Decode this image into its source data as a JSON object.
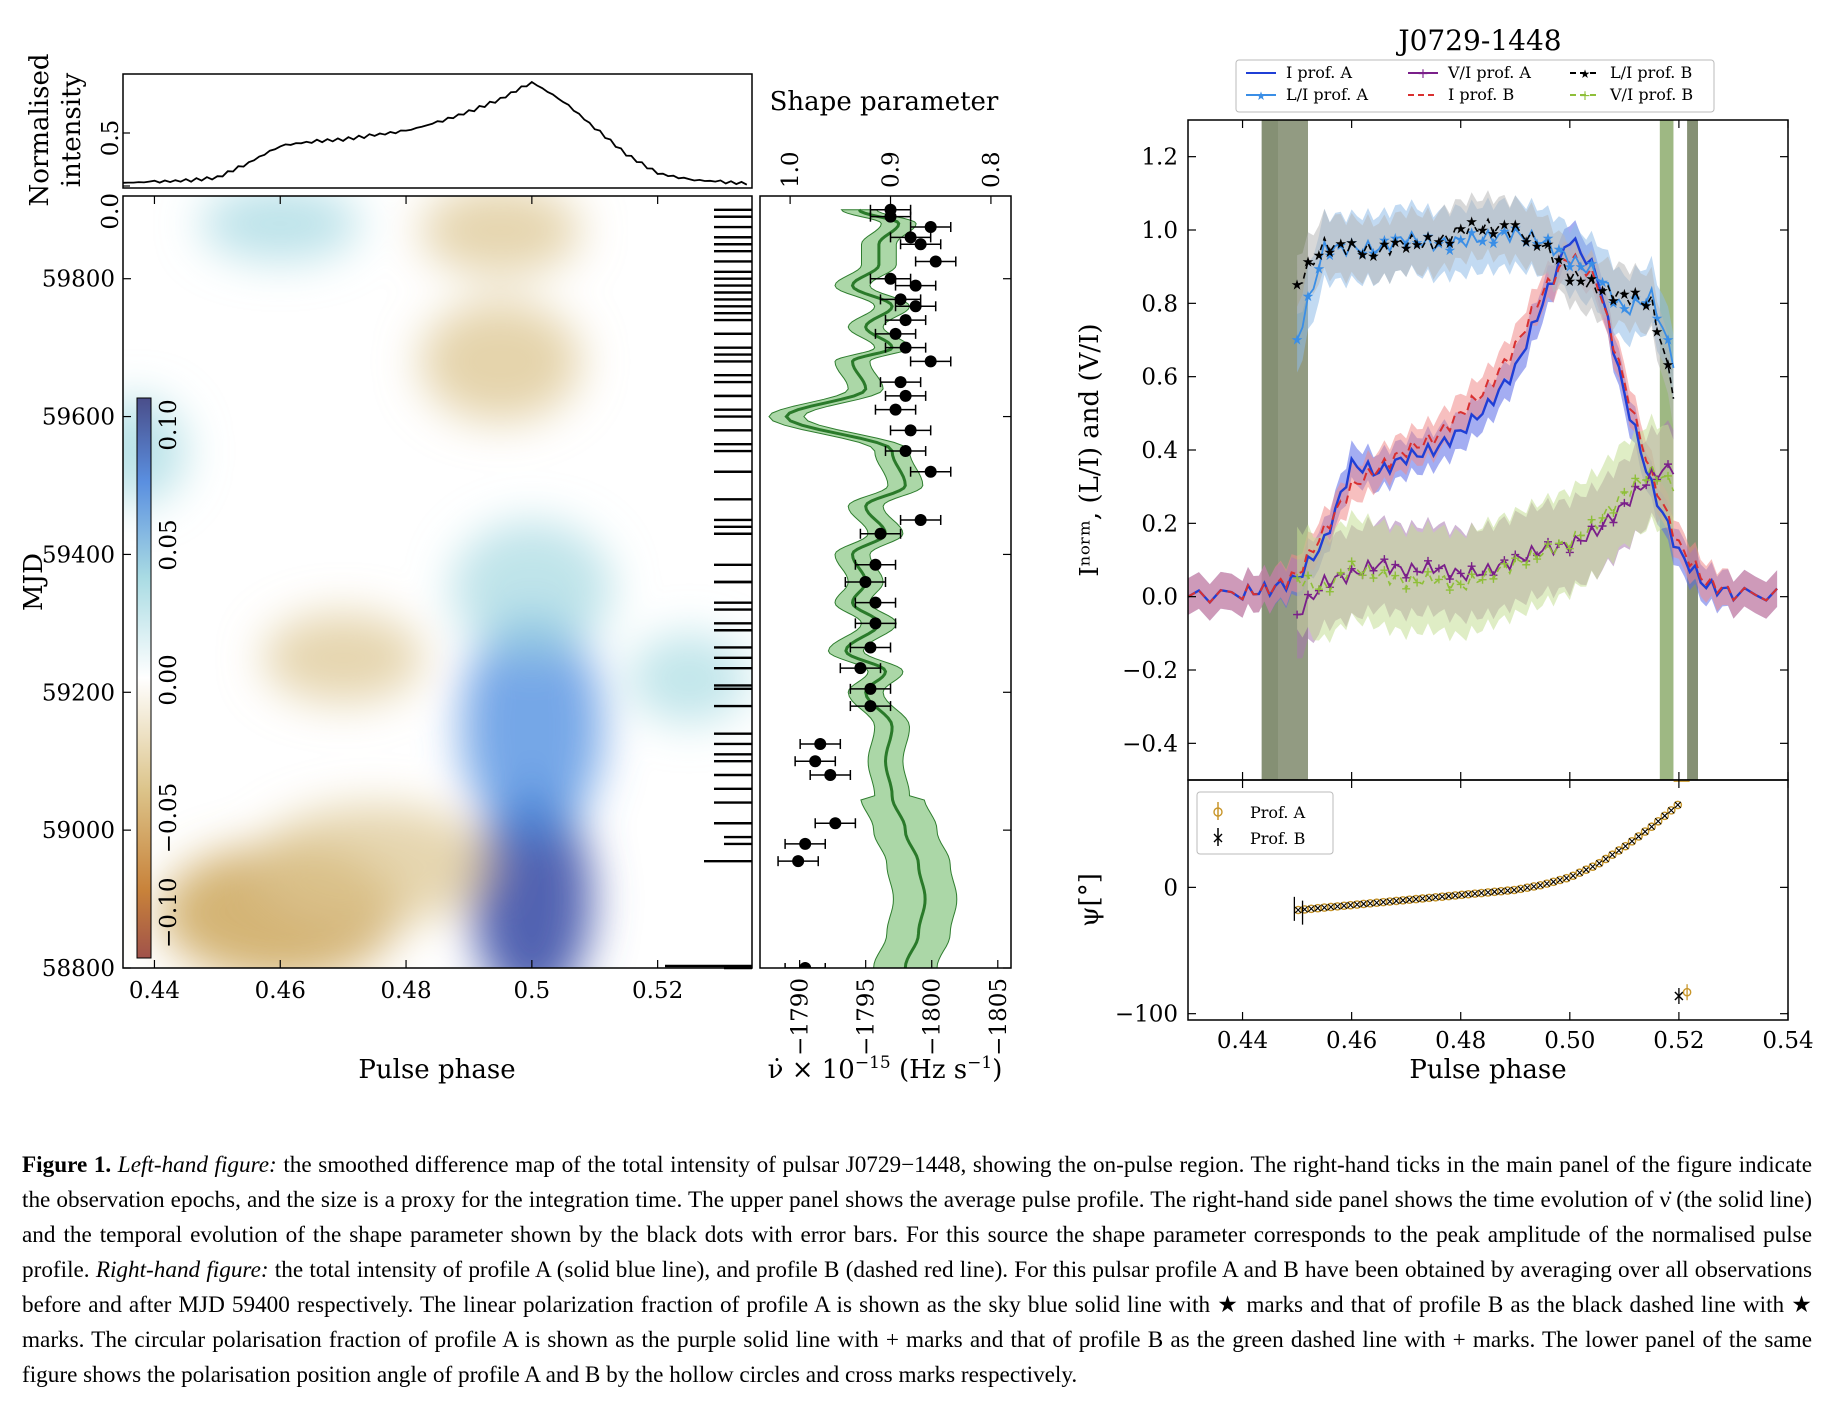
{
  "left_figure": {
    "top_panel": {
      "ylabel_line1": "Normalised",
      "ylabel_line2": "intensity",
      "yticks": [
        "0.0",
        "0.5"
      ]
    },
    "main_panel": {
      "ylabel": "MJD",
      "xlabel": "Pulse phase",
      "xticks": [
        "0.44",
        "0.46",
        "0.48",
        "0.5",
        "0.52"
      ],
      "yticks": [
        "58800",
        "59000",
        "59200",
        "59400",
        "59600",
        "59800"
      ],
      "colorbar_ticks": [
        "−0.10",
        "−0.05",
        "0.00",
        "0.05",
        "0.10"
      ]
    },
    "side_panel": {
      "title": "Shape parameter",
      "top_ticks": [
        "1.0",
        "0.9",
        "0.8"
      ],
      "bottom_ticks": [
        "−1790",
        "−1795",
        "−1800",
        "−1805"
      ],
      "xlabel_prefix": "ν̇ × 10",
      "xlabel_exp": "−15",
      "xlabel_suffix": " (Hz s",
      "xlabel_exp2": "−1",
      "xlabel_close": ")"
    }
  },
  "right_figure": {
    "title": "J0729-1448",
    "ylabel": "Iⁿᵒʳᵐ, (L/I) and (V/I)",
    "legend": [
      {
        "label": "I prof. A",
        "color": "#1f3fd6",
        "style": "solid"
      },
      {
        "label": "L/I prof. A",
        "color": "#3a8ee6",
        "style": "solid-star"
      },
      {
        "label": "V/I prof. A",
        "color": "#7a1f8a",
        "style": "solid-plus"
      },
      {
        "label": "I prof. B",
        "color": "#d93030",
        "style": "dashed"
      },
      {
        "label": "L/I prof. B",
        "color": "#000000",
        "style": "dashed-star"
      },
      {
        "label": "V/I prof. B",
        "color": "#8fbf3a",
        "style": "dashed-plus"
      }
    ],
    "yticks": [
      "−0.4",
      "−0.2",
      "0.0",
      "0.2",
      "0.4",
      "0.6",
      "0.8",
      "1.0",
      "1.2"
    ],
    "pa_panel": {
      "ylabel": "ψ[°]",
      "yticks": [
        "−100",
        "0"
      ],
      "legend": [
        {
          "label": "Prof. A",
          "color": "#c8962a"
        },
        {
          "label": "Prof. B",
          "color": "#000000"
        }
      ]
    },
    "xlabel": "Pulse phase",
    "xticks": [
      "0.44",
      "0.46",
      "0.48",
      "0.50",
      "0.52",
      "0.54"
    ]
  },
  "caption": {
    "label": "Figure 1.",
    "lhf": "Left-hand figure:",
    "text1": " the smoothed difference map of the total intensity of pulsar J0729−1448, showing the on-pulse region. The right-hand ticks in the main panel of the figure indicate the observation epochs, and the size is a proxy for the integration time. The upper panel shows the average pulse profile. The right-hand side panel shows the time evolution of ν̇ (the solid line) and the temporal evolution of the shape parameter shown by the black dots with error bars. For this source the shape parameter corresponds to the peak amplitude of the normalised pulse profile. ",
    "rhf": "Right-hand figure:",
    "text2": " the total intensity of profile A (solid blue line), and profile B (dashed red line). For this pulsar profile A and B have been obtained by averaging over all observations before and after MJD 59400 respectively. The linear polarization fraction of profile A is shown as the sky blue solid line with ★ marks and that of profile B as the black dashed line with ★ marks. The circular polarisation fraction of profile A is shown as the purple solid line with + marks and that of profile B as the green dashed line with + marks. The lower panel of the same figure shows the polarisation position angle of profile A and B by the hollow circles and cross marks respectively."
  },
  "chart_data": [
    {
      "type": "line",
      "title": "",
      "xlabel": "Pulse phase",
      "ylabel": "Normalised intensity",
      "x": [
        0.435,
        0.44,
        0.445,
        0.45,
        0.455,
        0.46,
        0.465,
        0.47,
        0.475,
        0.48,
        0.485,
        0.49,
        0.495,
        0.5,
        0.505,
        0.51,
        0.515,
        0.52,
        0.525,
        0.53,
        0.535
      ],
      "y": [
        0.03,
        0.04,
        0.05,
        0.08,
        0.22,
        0.38,
        0.42,
        0.44,
        0.48,
        0.52,
        0.6,
        0.7,
        0.82,
        0.98,
        0.8,
        0.55,
        0.3,
        0.12,
        0.06,
        0.04,
        0.02
      ],
      "ylim": [
        0,
        1
      ]
    },
    {
      "type": "heatmap",
      "title": "",
      "xlabel": "Pulse phase",
      "ylabel": "MJD",
      "xlim": [
        0.435,
        0.535
      ],
      "ylim": [
        58800,
        59920
      ],
      "colorbar_range": [
        -0.12,
        0.12
      ],
      "blobs": [
        {
          "x": 0.5,
          "y": 58900,
          "value": 0.11,
          "sx": 0.006,
          "sy": 140
        },
        {
          "x": 0.5,
          "y": 59150,
          "value": 0.06,
          "sx": 0.007,
          "sy": 150
        },
        {
          "x": 0.5,
          "y": 59350,
          "value": 0.03,
          "sx": 0.008,
          "sy": 90
        },
        {
          "x": 0.46,
          "y": 58880,
          "value": -0.06,
          "sx": 0.012,
          "sy": 90
        },
        {
          "x": 0.475,
          "y": 58950,
          "value": -0.04,
          "sx": 0.012,
          "sy": 80
        },
        {
          "x": 0.47,
          "y": 59250,
          "value": -0.04,
          "sx": 0.008,
          "sy": 60
        },
        {
          "x": 0.495,
          "y": 59680,
          "value": -0.05,
          "sx": 0.008,
          "sy": 80
        },
        {
          "x": 0.495,
          "y": 59870,
          "value": -0.04,
          "sx": 0.008,
          "sy": 60
        },
        {
          "x": 0.46,
          "y": 59880,
          "value": 0.035,
          "sx": 0.008,
          "sy": 50
        },
        {
          "x": 0.437,
          "y": 59550,
          "value": 0.04,
          "sx": 0.005,
          "sy": 70
        },
        {
          "x": 0.525,
          "y": 59220,
          "value": 0.02,
          "sx": 0.006,
          "sy": 60
        }
      ]
    },
    {
      "type": "line",
      "title": "Shape parameter",
      "xlabel": "ν̇ × 10^−15 (Hz s^−1)",
      "ylabel": "MJD",
      "nudot_mjd": [
        58800,
        58850,
        58900,
        58950,
        59000,
        59050,
        59100,
        59150,
        59200,
        59230,
        59260,
        59300,
        59330,
        59360,
        59400,
        59430,
        59470,
        59500,
        59550,
        59600,
        59640,
        59680,
        59700,
        59730,
        59760,
        59790,
        59820,
        59850,
        59880,
        59900
      ],
      "nudot": [
        -1798,
        -1799,
        -1799.5,
        -1799,
        -1798,
        -1797,
        -1796.5,
        -1797,
        -1795,
        -1796.5,
        -1793.5,
        -1796,
        -1794,
        -1795,
        -1794,
        -1796.5,
        -1795,
        -1798,
        -1797,
        -1789,
        -1795,
        -1794,
        -1797,
        -1795,
        -1797,
        -1794,
        -1796,
        -1796,
        -1797.5,
        -1794.5
      ],
      "nudot_err": 1.2,
      "shape_mjd": [
        58800,
        58955,
        58980,
        59010,
        59080,
        59100,
        59125,
        59180,
        59205,
        59235,
        59265,
        59300,
        59330,
        59360,
        59385,
        59430,
        59450,
        59520,
        59550,
        59580,
        59610,
        59630,
        59650,
        59680,
        59700,
        59720,
        59740,
        59760,
        59770,
        59790,
        59800,
        59825,
        59850,
        59860,
        59875,
        59890,
        59900
      ],
      "shape": [
        0.985,
        0.992,
        0.985,
        0.955,
        0.96,
        0.975,
        0.97,
        0.92,
        0.92,
        0.93,
        0.92,
        0.915,
        0.915,
        0.925,
        0.915,
        0.91,
        0.87,
        0.86,
        0.885,
        0.88,
        0.895,
        0.885,
        0.89,
        0.86,
        0.885,
        0.895,
        0.885,
        0.875,
        0.89,
        0.875,
        0.9,
        0.855,
        0.87,
        0.88,
        0.86,
        0.9,
        0.9
      ],
      "shape_err": 0.02,
      "shape_xlim": [
        1.03,
        0.78
      ],
      "nudot_xlim": [
        -1787,
        -1806
      ]
    },
    {
      "type": "line",
      "title": "J0729-1448",
      "xlabel": "Pulse phase",
      "ylabel": "I norm, (L/I) and (V/I)",
      "xlim": [
        0.43,
        0.54
      ],
      "ylim": [
        -0.5,
        1.3
      ],
      "x": [
        0.43,
        0.44,
        0.445,
        0.45,
        0.455,
        0.46,
        0.465,
        0.47,
        0.475,
        0.48,
        0.485,
        0.49,
        0.495,
        0.5,
        0.505,
        0.51,
        0.515,
        0.52,
        0.525,
        0.53,
        0.54
      ],
      "series": [
        {
          "name": "I prof. A",
          "values": [
            0.0,
            0.01,
            0.02,
            0.05,
            0.15,
            0.36,
            0.34,
            0.38,
            0.4,
            0.45,
            0.52,
            0.62,
            0.8,
            0.98,
            0.88,
            0.55,
            0.3,
            0.12,
            0.03,
            0.01,
            0.0
          ]
        },
        {
          "name": "I prof. B",
          "values": [
            0.0,
            0.01,
            0.02,
            0.06,
            0.18,
            0.3,
            0.35,
            0.4,
            0.43,
            0.5,
            0.57,
            0.68,
            0.83,
            0.93,
            0.86,
            0.58,
            0.33,
            0.14,
            0.04,
            0.01,
            0.0
          ]
        },
        {
          "name": "L/I prof. A",
          "values": [
            null,
            null,
            null,
            0.7,
            0.95,
            0.95,
            0.95,
            0.98,
            0.96,
            0.97,
            0.98,
            0.99,
            0.97,
            0.92,
            0.88,
            0.78,
            0.82,
            0.6,
            null,
            null,
            null
          ]
        },
        {
          "name": "L/I prof. B",
          "values": [
            null,
            null,
            null,
            0.85,
            0.96,
            0.95,
            0.94,
            0.97,
            0.96,
            1.0,
            1.01,
            1.0,
            0.96,
            0.88,
            0.84,
            0.82,
            0.8,
            0.5,
            null,
            null,
            null
          ]
        },
        {
          "name": "V/I prof. A",
          "values": [
            null,
            null,
            null,
            -0.05,
            0.04,
            0.06,
            0.09,
            0.07,
            0.08,
            0.06,
            0.07,
            0.1,
            0.13,
            0.14,
            0.18,
            0.25,
            0.33,
            0.36,
            null,
            null,
            null
          ]
        },
        {
          "name": "V/I prof. B",
          "values": [
            null,
            null,
            null,
            0.05,
            0.02,
            0.08,
            0.06,
            0.04,
            0.05,
            0.03,
            0.06,
            0.09,
            0.12,
            0.15,
            0.2,
            0.28,
            0.34,
            0.3,
            null,
            null,
            null
          ]
        }
      ]
    },
    {
      "type": "scatter",
      "title": "",
      "xlabel": "Pulse phase",
      "ylabel": "ψ[°]",
      "xlim": [
        0.43,
        0.54
      ],
      "ylim": [
        -105,
        85
      ],
      "series": [
        {
          "name": "Prof. A",
          "x": [
            0.45,
            0.46,
            0.47,
            0.48,
            0.49,
            0.495,
            0.5,
            0.505,
            0.51,
            0.515,
            0.52,
            0.521
          ],
          "values": [
            -18,
            -14,
            -10,
            -6,
            -2,
            2,
            8,
            18,
            32,
            48,
            66,
            84
          ]
        },
        {
          "name": "Prof. B",
          "x": [
            0.45,
            0.46,
            0.47,
            0.48,
            0.49,
            0.495,
            0.5,
            0.505,
            0.51,
            0.515,
            0.52,
            0.52
          ],
          "values": [
            -17,
            -14,
            -10,
            -6,
            -2,
            2,
            8,
            18,
            32,
            48,
            66,
            -86
          ]
        }
      ]
    }
  ]
}
